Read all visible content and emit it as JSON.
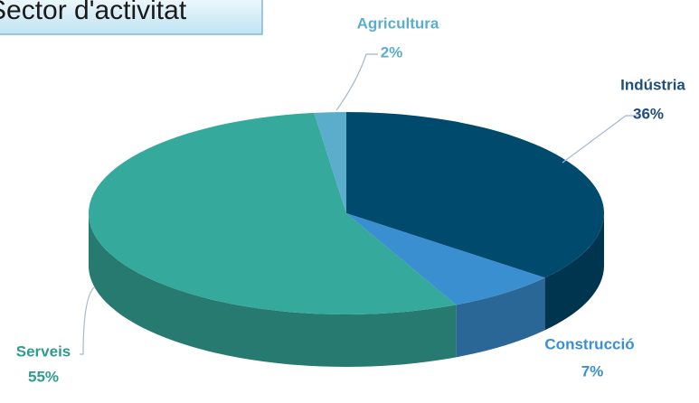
{
  "chart_data": {
    "type": "pie",
    "title": "Sector d'activitat",
    "categories": [
      "Indústria",
      "Construcció",
      "Serveis",
      "Agricultura"
    ],
    "values": [
      36,
      7,
      55,
      2
    ],
    "value_labels": [
      "36%",
      "7%",
      "55%",
      "2%"
    ],
    "colors": [
      "#004a6e",
      "#3a8fd0",
      "#35a99b",
      "#5aaecc"
    ]
  }
}
